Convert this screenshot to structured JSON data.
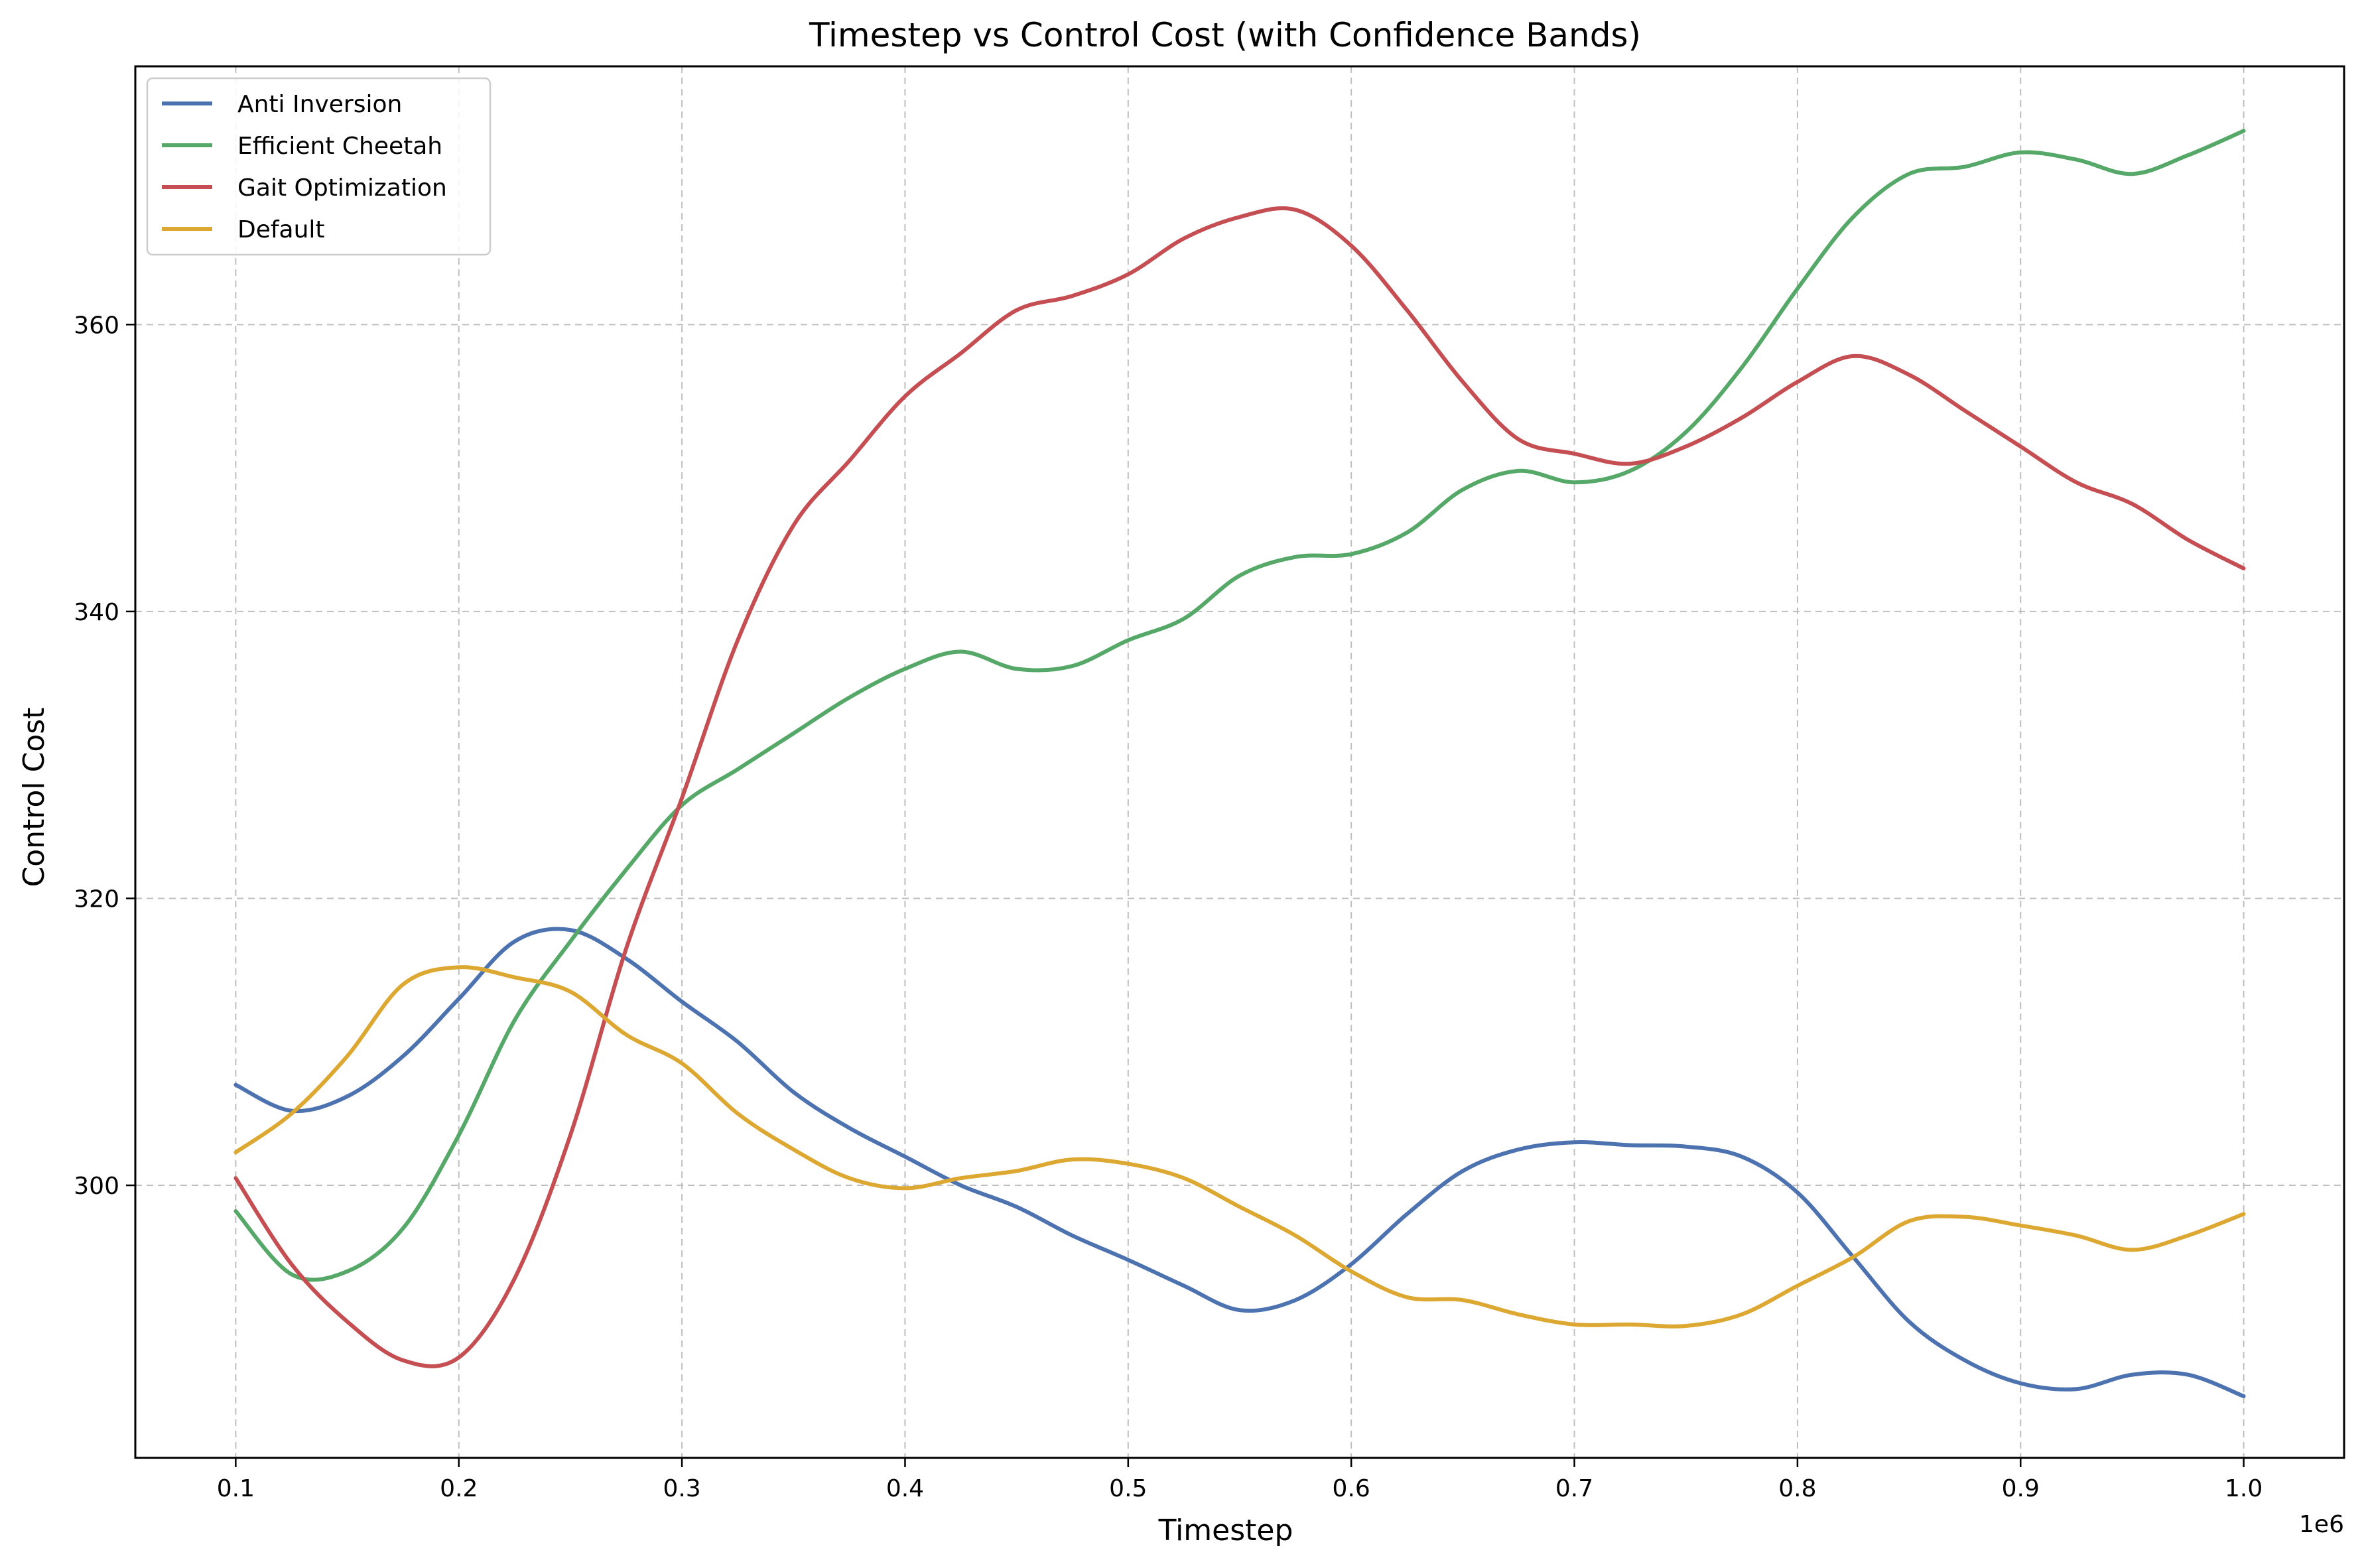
{
  "chart_data": {
    "type": "line",
    "title": "Timestep vs Control Cost (with Confidence Bands)",
    "xlabel": "Timestep",
    "ylabel": "Control Cost",
    "x_multiplier": "1e6",
    "xlim": [
      0.055,
      1.045
    ],
    "ylim": [
      281.0,
      378.0
    ],
    "xticks": [
      "0.1",
      "0.2",
      "0.3",
      "0.4",
      "0.5",
      "0.6",
      "0.7",
      "0.8",
      "0.9",
      "1.0"
    ],
    "yticks": [
      "300",
      "320",
      "340",
      "360"
    ],
    "grid": true,
    "legend_position": "top-left",
    "x": [
      0.1,
      0.125,
      0.15,
      0.175,
      0.2,
      0.225,
      0.25,
      0.275,
      0.3,
      0.325,
      0.35,
      0.375,
      0.4,
      0.425,
      0.45,
      0.475,
      0.5,
      0.525,
      0.55,
      0.575,
      0.6,
      0.625,
      0.65,
      0.675,
      0.7,
      0.725,
      0.75,
      0.775,
      0.8,
      0.825,
      0.85,
      0.875,
      0.9,
      0.925,
      0.95,
      0.975,
      1.0
    ],
    "series": [
      {
        "name": "Anti Inversion",
        "color": "#4c72b0",
        "values": [
          307.0,
          305.2,
          306.2,
          309.0,
          313.0,
          317.0,
          317.8,
          315.8,
          312.8,
          310.0,
          306.5,
          304.0,
          302.0,
          300.0,
          298.5,
          296.5,
          294.8,
          293.0,
          291.3,
          292.0,
          294.5,
          298.0,
          301.0,
          302.5,
          303.0,
          302.8,
          302.7,
          302.0,
          299.5,
          295.0,
          290.5,
          287.8,
          286.2,
          285.8,
          286.8,
          286.8,
          285.3
        ]
      },
      {
        "name": "Efficient Cheetah",
        "color": "#55a868",
        "values": [
          298.2,
          293.8,
          294.0,
          297.0,
          303.5,
          311.5,
          317.0,
          322.0,
          326.5,
          329.0,
          331.5,
          334.0,
          336.0,
          337.2,
          336.0,
          336.2,
          338.0,
          339.5,
          342.5,
          343.8,
          344.0,
          345.5,
          348.5,
          349.8,
          349.0,
          349.8,
          352.5,
          357.0,
          362.5,
          367.5,
          370.5,
          371.0,
          372.0,
          371.5,
          370.5,
          371.8,
          373.5
        ]
      },
      {
        "name": "Gait Optimization",
        "color": "#c44e52",
        "values": [
          300.5,
          294.5,
          290.5,
          287.8,
          288.0,
          293.5,
          303.5,
          316.5,
          327.0,
          338.0,
          346.0,
          350.5,
          355.0,
          358.0,
          361.0,
          362.0,
          363.5,
          366.0,
          367.5,
          368.0,
          365.5,
          361.0,
          356.0,
          352.0,
          351.0,
          350.3,
          351.5,
          353.5,
          356.0,
          357.8,
          356.5,
          354.0,
          351.5,
          349.0,
          347.5,
          345.0,
          343.0
        ]
      },
      {
        "name": "Default",
        "color": "#dda832",
        "values": [
          302.3,
          305.0,
          309.0,
          314.0,
          315.2,
          314.5,
          313.5,
          310.5,
          308.5,
          305.0,
          302.5,
          300.5,
          299.8,
          300.5,
          301.0,
          301.8,
          301.5,
          300.5,
          298.5,
          296.5,
          294.0,
          292.2,
          292.0,
          291.0,
          290.3,
          290.3,
          290.2,
          291.0,
          293.0,
          295.0,
          297.5,
          297.8,
          297.2,
          296.5,
          295.5,
          296.5,
          298.0
        ]
      }
    ]
  }
}
